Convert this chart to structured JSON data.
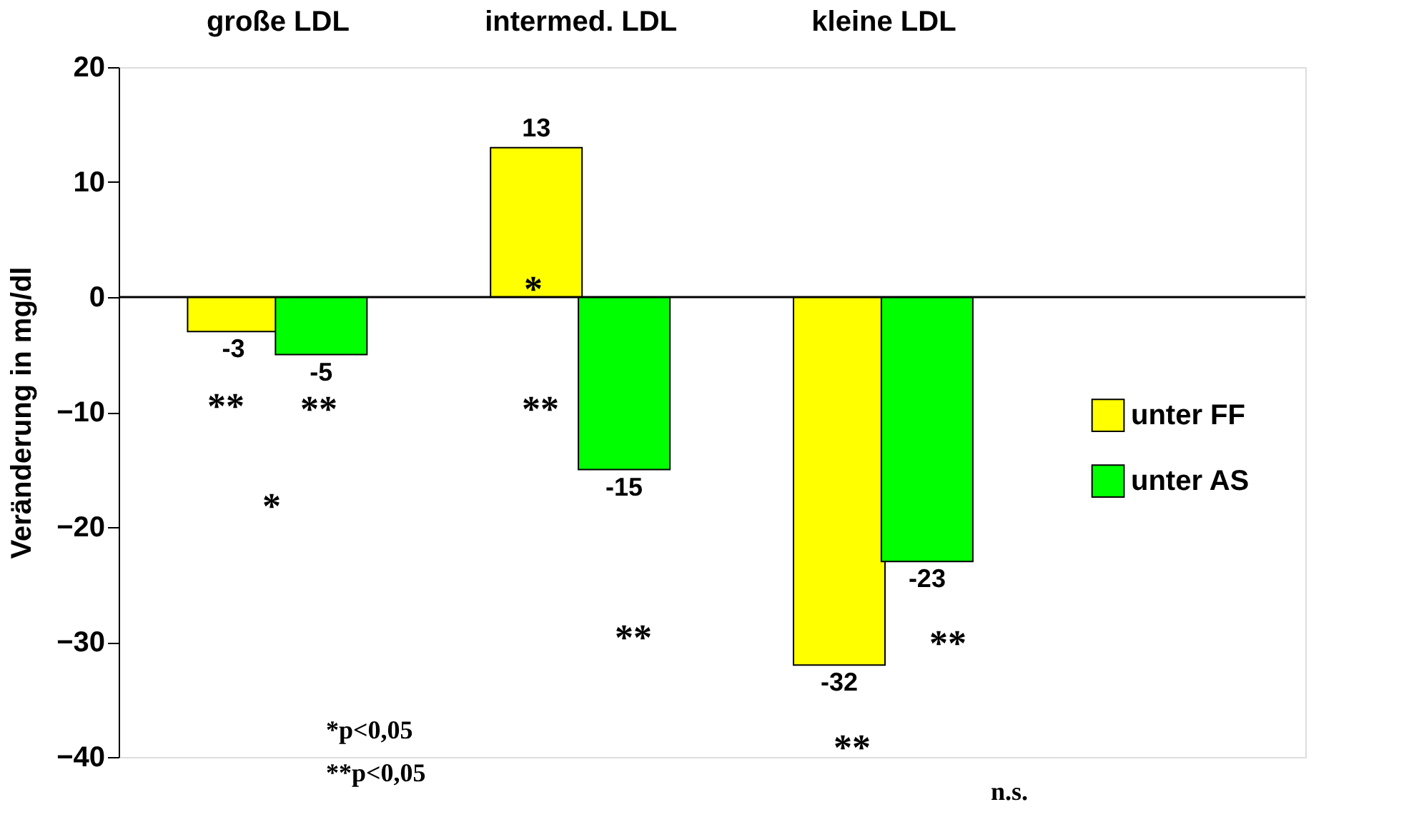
{
  "chart_data": {
    "type": "bar",
    "categories": [
      "große LDL",
      "intermed. LDL",
      "kleine LDL"
    ],
    "series": [
      {
        "name": "unter FF",
        "color": "#ffff00",
        "values": [
          -3,
          13,
          -32
        ]
      },
      {
        "name": "unter AS",
        "color": "#00ff00",
        "values": [
          -5,
          -15,
          -23
        ]
      }
    ],
    "ylabel": "Veränderung in mg/dl",
    "ylim": [
      -40,
      20
    ],
    "yticks": [
      -40,
      -30,
      -20,
      -10,
      0,
      10,
      20
    ],
    "data_labels": true,
    "grid": false,
    "legend": "right",
    "ref_lines": [
      {
        "axis": "y",
        "value": 0
      }
    ],
    "annotations": [
      "**",
      "**",
      "*",
      "*",
      "**",
      "**",
      "**",
      "**",
      "n.s.",
      "*p<0,05",
      "**p<0,05"
    ]
  }
}
